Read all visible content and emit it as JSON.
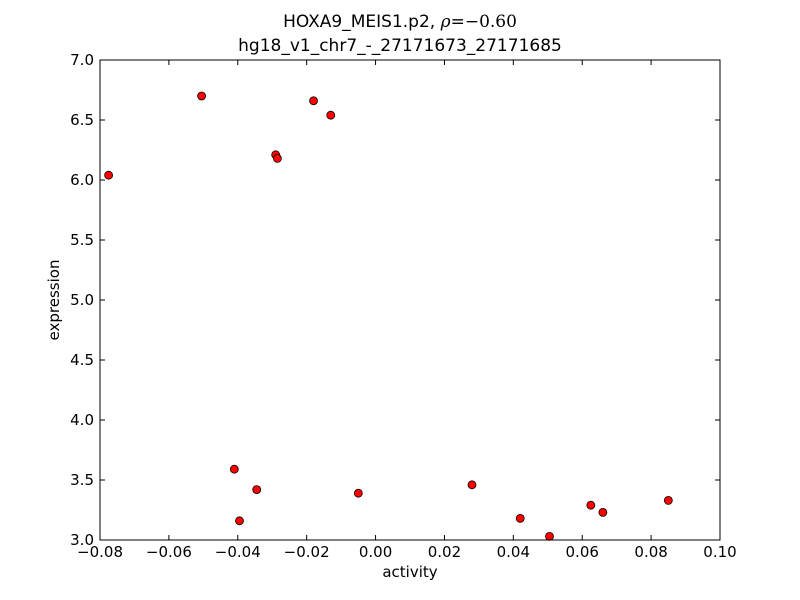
{
  "chart_data": {
    "type": "scatter",
    "title_parts": {
      "prefix": "HOXA9_MEIS1.p2, ",
      "symbol": "ρ",
      "equals": "=",
      "value": "−0.60"
    },
    "subtitle": "hg18_v1_chr7_-_27171673_27171685",
    "xlabel": "activity",
    "ylabel": "expression",
    "xlim": [
      -0.08,
      0.1
    ],
    "ylim": [
      3.0,
      7.0
    ],
    "xticks": [
      -0.08,
      -0.06,
      -0.04,
      -0.02,
      0.0,
      0.02,
      0.04,
      0.06,
      0.08,
      0.1
    ],
    "xtick_labels": [
      "−0.08",
      "−0.06",
      "−0.04",
      "−0.02",
      "0.00",
      "0.02",
      "0.04",
      "0.06",
      "0.08",
      "0.10"
    ],
    "yticks": [
      3.0,
      3.5,
      4.0,
      4.5,
      5.0,
      5.5,
      6.0,
      6.5,
      7.0
    ],
    "ytick_labels": [
      "3.0",
      "3.5",
      "4.0",
      "4.5",
      "5.0",
      "5.5",
      "6.0",
      "6.5",
      "7.0"
    ],
    "grid": false,
    "marker_color": "#ff0000",
    "marker_edge": "#000000",
    "points": [
      {
        "x": -0.0775,
        "y": 6.04
      },
      {
        "x": -0.0505,
        "y": 6.7
      },
      {
        "x": -0.029,
        "y": 6.21
      },
      {
        "x": -0.0285,
        "y": 6.18
      },
      {
        "x": -0.018,
        "y": 6.66
      },
      {
        "x": -0.013,
        "y": 6.54
      },
      {
        "x": -0.041,
        "y": 3.59
      },
      {
        "x": -0.0395,
        "y": 3.16
      },
      {
        "x": -0.0345,
        "y": 3.42
      },
      {
        "x": -0.005,
        "y": 3.39
      },
      {
        "x": 0.028,
        "y": 3.46
      },
      {
        "x": 0.042,
        "y": 3.18
      },
      {
        "x": 0.0505,
        "y": 3.03
      },
      {
        "x": 0.0625,
        "y": 3.29
      },
      {
        "x": 0.066,
        "y": 3.23
      },
      {
        "x": 0.085,
        "y": 3.33
      }
    ]
  }
}
